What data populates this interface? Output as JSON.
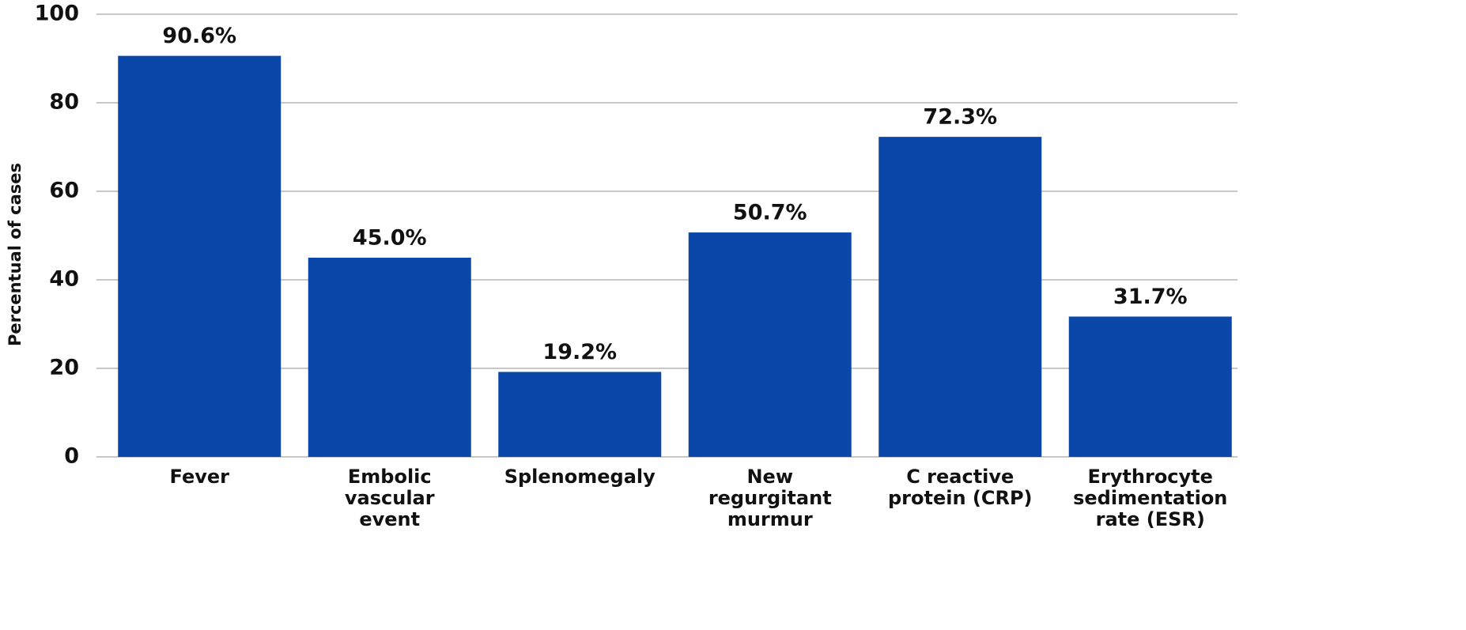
{
  "chart_data": {
    "type": "bar",
    "y_label": "Percentual of cases",
    "categories": [
      "Fever",
      "Embolic\nvascular\nevent",
      "Splenomegaly",
      "New\nregurgitant\nmurmur",
      "C reactive\nprotein (CRP)",
      "Erythrocyte\nsedimentation\nrate (ESR)"
    ],
    "values": [
      90.6,
      45.0,
      19.2,
      50.7,
      72.3,
      31.7
    ],
    "value_labels": [
      "90.6%",
      "45.0%",
      "19.2%",
      "50.7%",
      "72.3%",
      "31.7%"
    ],
    "color": "#0b47a8",
    "ylim": [
      0,
      100
    ],
    "yticks": [
      0,
      20,
      40,
      60,
      80,
      100
    ],
    "grid": true
  }
}
